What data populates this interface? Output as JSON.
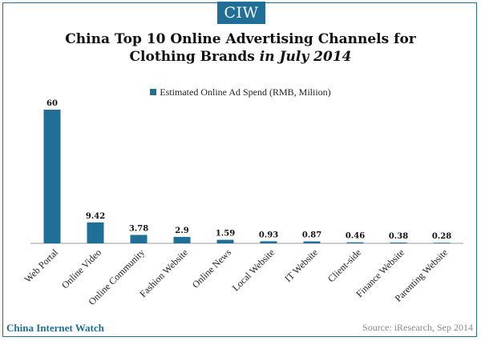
{
  "brand": {
    "logo_text": "CIW",
    "footer_brand": "China Internet Watch",
    "source": "Source: iResearch, Sep 2014"
  },
  "header": {
    "title_line1": "China Top 10 Online Advertising Channels for",
    "title_line2_a": "Clothing Brands ",
    "title_line2_b": "in July 2014"
  },
  "colors": {
    "bar": "#1f6f96",
    "frame": "#1f6f96"
  },
  "chart_data": {
    "type": "bar",
    "title": "China Top 10 Online Advertising Channels for Clothing Brands in July 2014",
    "categories": [
      "Web Portal",
      "Online Video",
      "Online Community",
      "Fashion Website",
      "Online News",
      "Local Website",
      "IT Website",
      "Client-side",
      "Finance Website",
      "Parenting Website"
    ],
    "series": [
      {
        "name": "Estimated Online Ad Spend (RMB, Miliion)",
        "values": [
          60,
          9.42,
          3.78,
          2.9,
          1.59,
          0.93,
          0.87,
          0.46,
          0.38,
          0.28
        ]
      }
    ],
    "data_labels": [
      "60",
      "9.42",
      "3.78",
      "2.9",
      "1.59",
      "0.93",
      "0.87",
      "0.46",
      "0.38",
      "0.28"
    ],
    "ylim": [
      0,
      60
    ],
    "grid": false,
    "legend_position": "top-center"
  }
}
